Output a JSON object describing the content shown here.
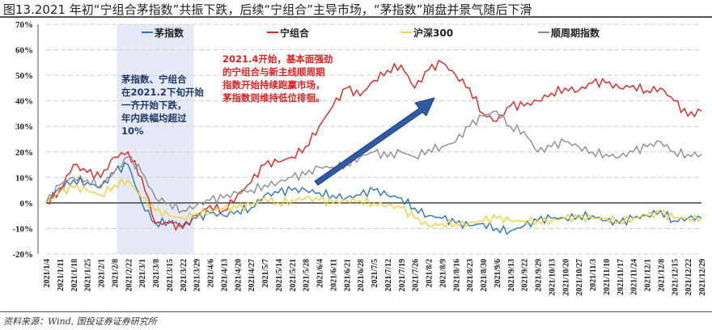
{
  "title": "图13.2021 年初“宁组合茅指数”共振下跌，后续“宁组合”主导市场，“茅指数”崩盘并景气随后下滑",
  "source": "资料来源：Wind, 国投证券证券研究所",
  "annotations": {
    "left": [
      "茅指数、宁组合",
      "在2021.2下旬开始",
      "一齐开始下跌，",
      "年内跌幅均超过",
      "10%"
    ],
    "right": [
      "2021.4开始，基本面强劲",
      "的宁组合与新主线顺周期",
      "指数开始持续跑赢市场，",
      "茅指数则维持低位徘徊。"
    ]
  },
  "chart_data": {
    "type": "line",
    "title": "",
    "xlabel": "",
    "ylabel": "",
    "ylim": [
      -20,
      70
    ],
    "yticks": [
      "-20%",
      "-10%",
      "0%",
      "10%",
      "20%",
      "30%",
      "40%",
      "50%",
      "60%",
      "70%"
    ],
    "grid": true,
    "legend_position": "top",
    "highlight_range": [
      "2021/2/8",
      "2021/3/29"
    ],
    "categories": [
      "2021/1/4",
      "2021/1/11",
      "2021/1/18",
      "2021/1/25",
      "2021/2/1",
      "2021/2/8",
      "2021/2/22",
      "2021/3/1",
      "2021/3/8",
      "2021/3/15",
      "2021/3/22",
      "2021/3/29",
      "2021/4/6",
      "2021/4/13",
      "2021/4/20",
      "2021/4/27",
      "2021/5/7",
      "2021/5/14",
      "2021/5/21",
      "2021/5/28",
      "2021/6/4",
      "2021/6/11",
      "2021/6/21",
      "2021/6/28",
      "2021/7/5",
      "2021/7/12",
      "2021/7/19",
      "2021/7/26",
      "2021/8/2",
      "2021/8/9",
      "2021/8/16",
      "2021/8/23",
      "2021/8/30",
      "2021/9/6",
      "2021/9/13",
      "2021/9/22",
      "2021/9/29",
      "2021/10/13",
      "2021/10/20",
      "2021/10/27",
      "2021/11/3",
      "2021/11/10",
      "2021/11/17",
      "2021/11/24",
      "2021/12/1",
      "2021/12/8",
      "2021/12/15",
      "2021/12/22",
      "2021/12/29"
    ],
    "series": [
      {
        "name": "茅指数",
        "color": "#2e75b6",
        "values": [
          0,
          6,
          9,
          8,
          6,
          12,
          15,
          0,
          -8,
          -7,
          -9,
          -6,
          -4,
          -5,
          -3,
          -2,
          3,
          4,
          5,
          5,
          4,
          3,
          2,
          3,
          5,
          3,
          2,
          -2,
          -5,
          -6,
          -8,
          -9,
          -8,
          -10,
          -11,
          -9,
          -7,
          -6,
          -6,
          -5,
          -5,
          -7,
          -8,
          -6,
          -5,
          -3,
          -7,
          -6,
          -6
        ]
      },
      {
        "name": "宁组合",
        "color": "#e8201e",
        "values": [
          0,
          5,
          15,
          12,
          10,
          18,
          20,
          10,
          -8,
          -8,
          -10,
          -5,
          -1,
          -3,
          3,
          8,
          15,
          16,
          18,
          22,
          30,
          38,
          45,
          42,
          48,
          52,
          54,
          45,
          52,
          55,
          50,
          45,
          35,
          32,
          38,
          38,
          40,
          43,
          45,
          44,
          47,
          47,
          45,
          46,
          44,
          45,
          40,
          34,
          36
        ]
      },
      {
        "name": "沪深300",
        "color": "#f2d13a",
        "values": [
          0,
          4,
          6,
          5,
          3,
          7,
          9,
          2,
          -3,
          -5,
          -6,
          -4,
          -3,
          -2,
          -2,
          -1,
          2,
          0,
          1,
          2,
          1,
          0,
          1,
          1,
          0,
          -1,
          -2,
          -6,
          -9,
          -8,
          -8,
          -8,
          -7,
          -6,
          -7,
          -7,
          -7,
          -7,
          -6,
          -6,
          -6,
          -6,
          -7,
          -6,
          -5,
          -4,
          -6,
          -6,
          -6
        ]
      },
      {
        "name": "顺周期指数",
        "color": "#8c8c8c",
        "values": [
          0,
          7,
          10,
          9,
          7,
          12,
          18,
          12,
          2,
          0,
          -3,
          -1,
          1,
          2,
          4,
          5,
          7,
          8,
          10,
          11,
          14,
          14,
          15,
          18,
          20,
          18,
          20,
          18,
          21,
          22,
          24,
          30,
          34,
          36,
          30,
          28,
          20,
          22,
          24,
          22,
          20,
          19,
          18,
          20,
          22,
          24,
          20,
          19,
          19
        ]
      }
    ]
  }
}
